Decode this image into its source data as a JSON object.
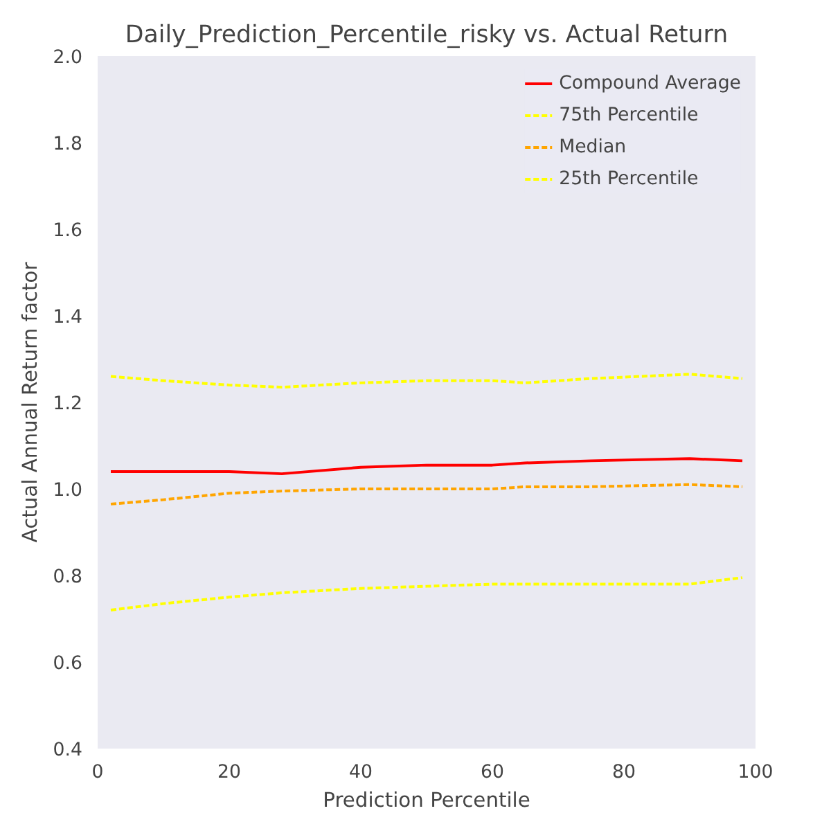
{
  "chart_data": {
    "type": "line",
    "title": "Daily_Prediction_Percentile_risky vs. Actual Return",
    "xlabel": "Prediction Percentile",
    "ylabel": "Actual Annual Return factor",
    "xlim": [
      0,
      100
    ],
    "ylim": [
      0.4,
      2.0
    ],
    "xticks": [
      0,
      20,
      40,
      60,
      80,
      100
    ],
    "yticks": [
      {
        "value": 0.4,
        "label": "0.4"
      },
      {
        "value": 0.6,
        "label": "0.6"
      },
      {
        "value": 0.8,
        "label": "0.8"
      },
      {
        "value": 1.0,
        "label": "1.0"
      },
      {
        "value": 1.2,
        "label": "1.2"
      },
      {
        "value": 1.4,
        "label": "1.4"
      },
      {
        "value": 1.6,
        "label": "1.6"
      },
      {
        "value": 1.8,
        "label": "1.8"
      },
      {
        "value": 2.0,
        "label": "2.0"
      }
    ],
    "grid": false,
    "legend": "top right",
    "x": [
      2,
      10,
      20,
      28,
      40,
      50,
      60,
      65,
      75,
      90,
      98
    ],
    "series": [
      {
        "name": "Compound Average",
        "color": "#ff0000",
        "line_style": "solid",
        "values": [
          1.04,
          1.04,
          1.04,
          1.035,
          1.05,
          1.055,
          1.055,
          1.06,
          1.065,
          1.07,
          1.065
        ]
      },
      {
        "name": "75th Percentile",
        "color": "#ffff00",
        "line_style": "dashed",
        "values": [
          1.26,
          1.25,
          1.24,
          1.235,
          1.245,
          1.25,
          1.25,
          1.245,
          1.255,
          1.265,
          1.255
        ]
      },
      {
        "name": "Median",
        "color": "#ffa500",
        "line_style": "dashed",
        "values": [
          0.965,
          0.975,
          0.99,
          0.995,
          1.0,
          1.0,
          1.0,
          1.005,
          1.005,
          1.01,
          1.005
        ]
      },
      {
        "name": "25th Percentile",
        "color": "#ffff00",
        "line_style": "dashed",
        "values": [
          0.72,
          0.735,
          0.75,
          0.76,
          0.77,
          0.775,
          0.78,
          0.78,
          0.78,
          0.78,
          0.795
        ]
      }
    ]
  }
}
